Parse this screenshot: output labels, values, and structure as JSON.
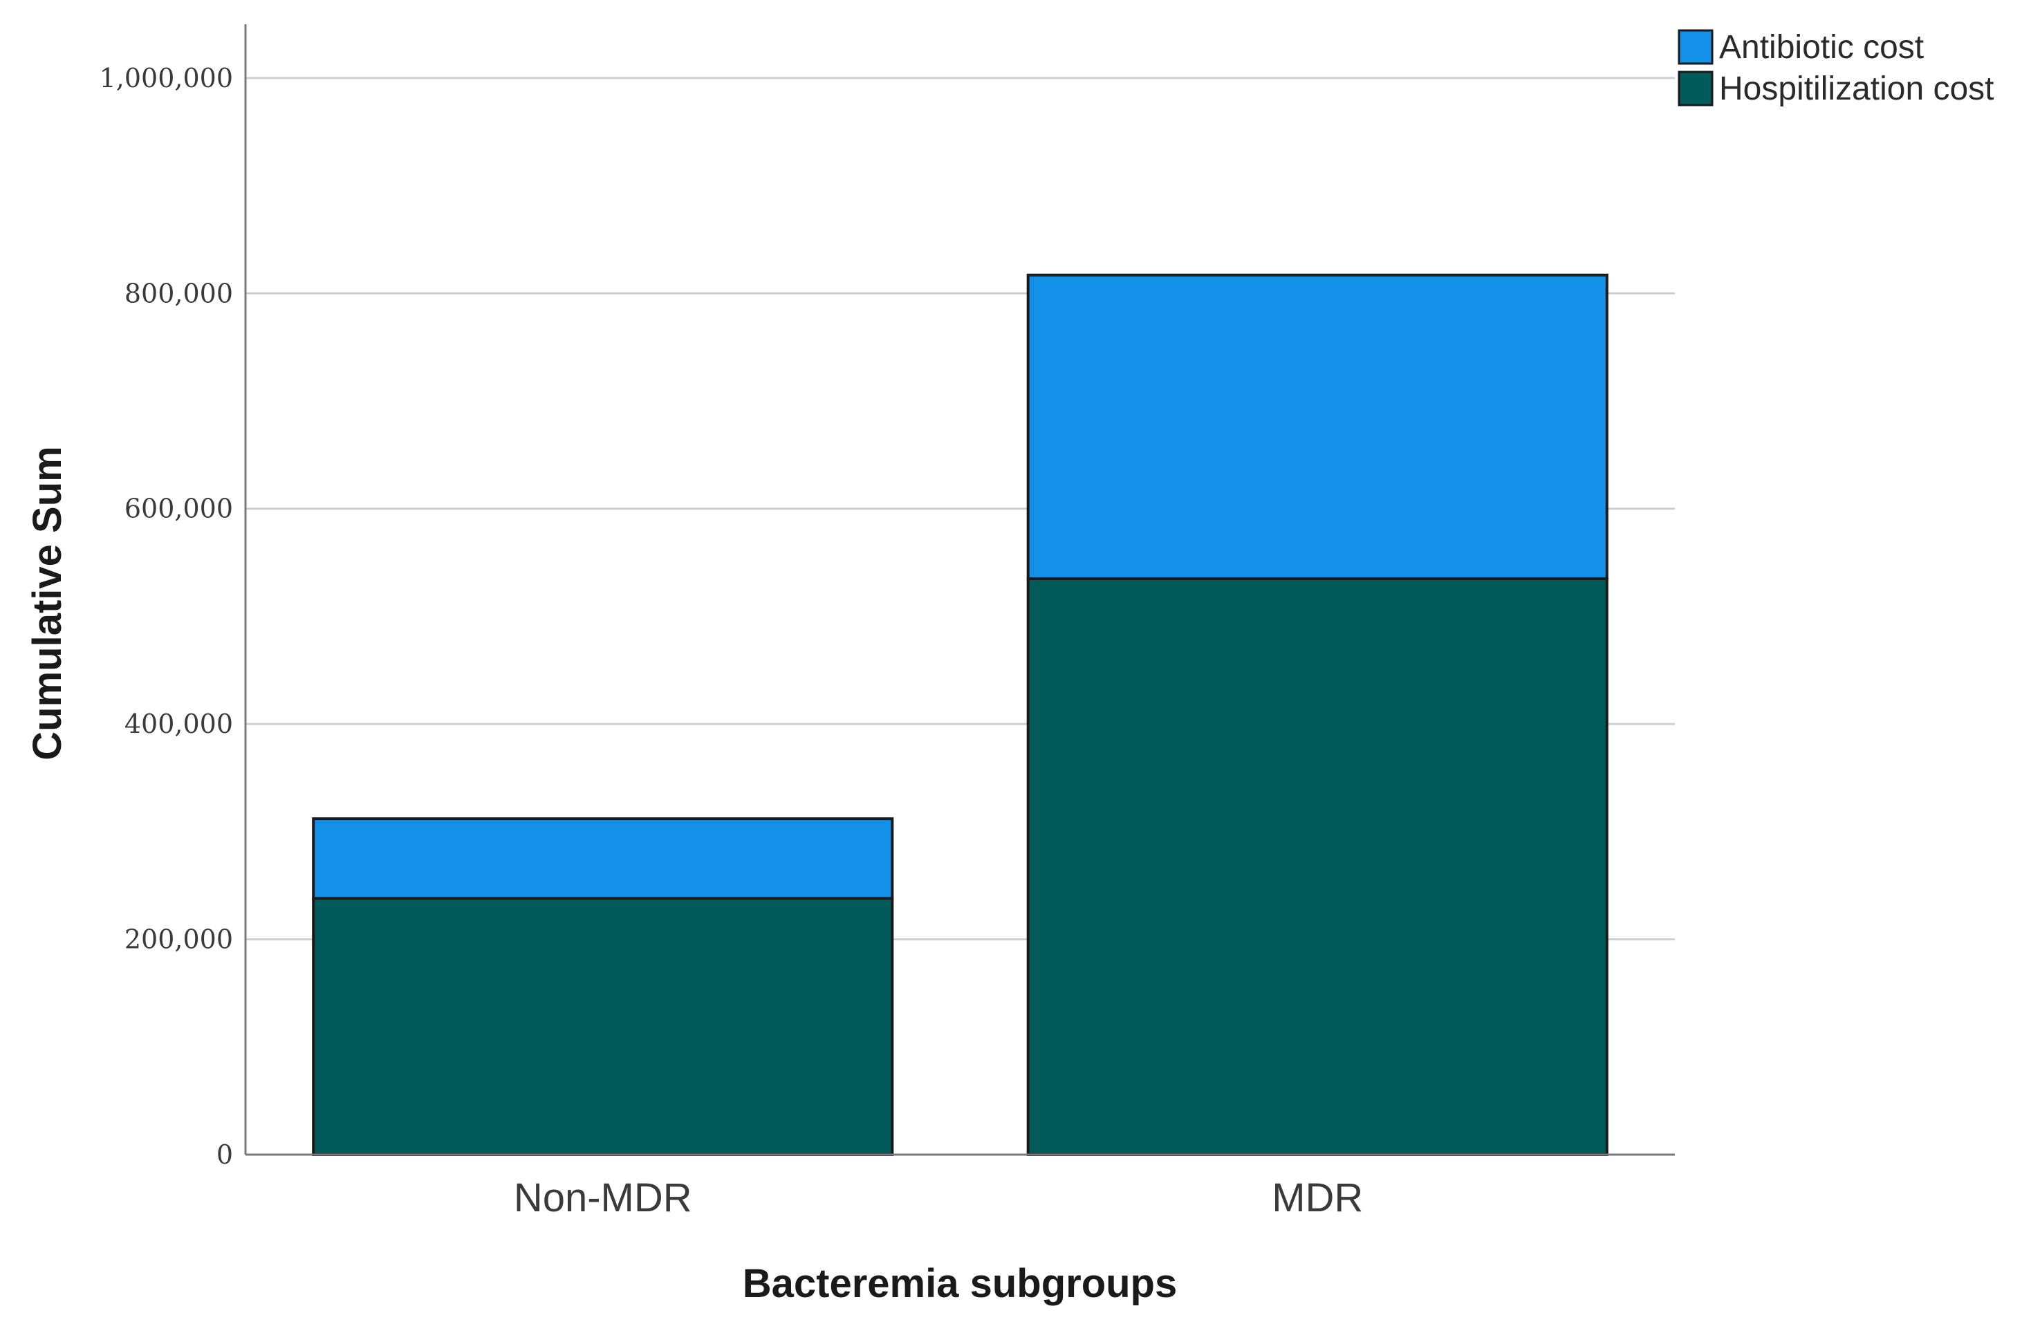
{
  "chart_data": {
    "type": "bar",
    "stacked": true,
    "categories": [
      "Non-MDR",
      "MDR"
    ],
    "series": [
      {
        "name": "Hospitilization cost",
        "color": "#025b5b",
        "values": [
          238000,
          535000
        ]
      },
      {
        "name": "Antibiotic cost",
        "color": "#1390e8",
        "values": [
          74000,
          282000
        ]
      }
    ],
    "xlabel": "Bacteremia subgroups",
    "ylabel": "Cumulative Sum",
    "ylim": [
      0,
      1050000
    ],
    "yticks": [
      0,
      200000,
      400000,
      600000,
      800000,
      1000000
    ],
    "ytick_labels": [
      "0",
      "200,000",
      "400,000",
      "600,000",
      "800,000",
      "1,000,000"
    ],
    "grid": "horizontal",
    "legend_position": "top-right",
    "legend_order": [
      "Antibiotic cost",
      "Hospitilization cost"
    ]
  }
}
